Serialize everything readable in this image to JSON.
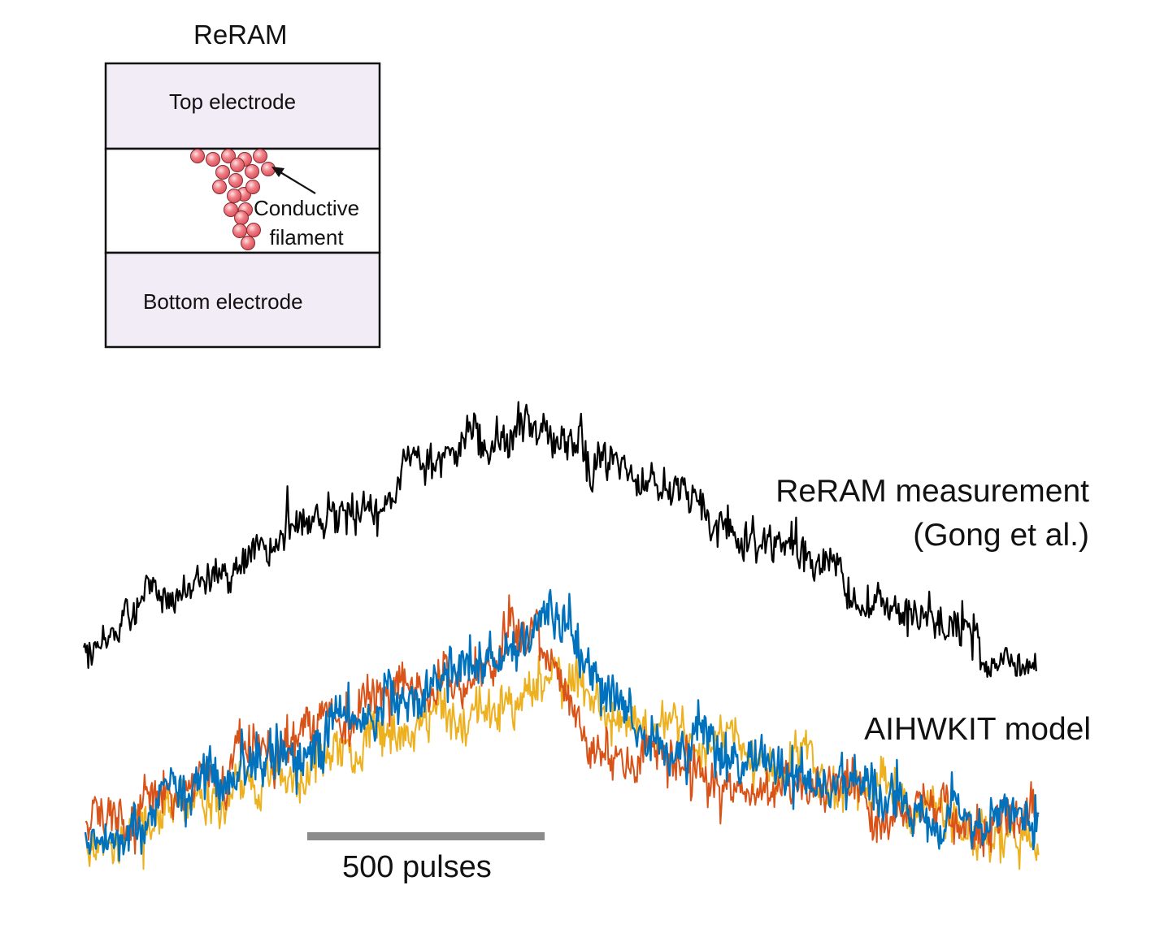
{
  "schematic": {
    "title": "ReRAM",
    "top_layer": "Top electrode",
    "bottom_layer": "Bottom electrode",
    "filament_label": "Conductive\nfilament"
  },
  "measurement": {
    "label": "ReRAM measurement\n(Gong et al.)",
    "color": "#000000"
  },
  "model": {
    "label": "AIHWKIT model",
    "colors": [
      "#edb120",
      "#d95319",
      "#0072bd"
    ]
  },
  "scale_bar": {
    "label": "500 pulses",
    "pulses": 500,
    "color": "#8c8c8c"
  },
  "colors": {
    "electrode_fill": "#f1ecf6",
    "filament_ball": "#f07f86"
  }
}
